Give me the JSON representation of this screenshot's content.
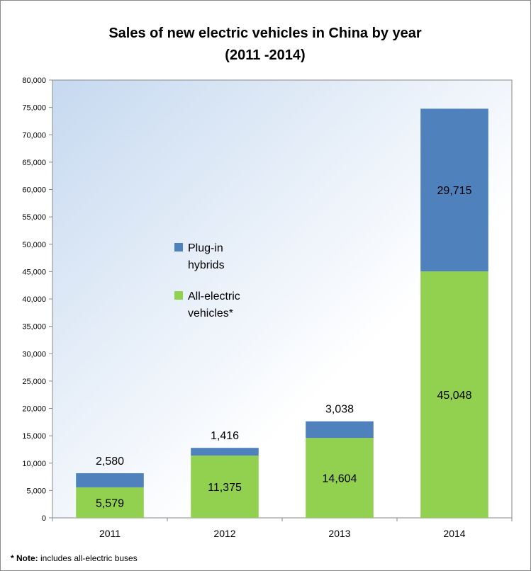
{
  "title": {
    "line1": "Sales of new electric vehicles in China by year",
    "line2": "(2011 -2014)"
  },
  "note": {
    "prefix": "* Note:",
    "text": " includes all-electric buses"
  },
  "colors": {
    "plug_in": "#4f81bd",
    "all_electric": "#92d050",
    "gradient_start": "#c6d9f0",
    "gradient_end": "#ffffff"
  },
  "chart_data": {
    "type": "bar",
    "stacked": true,
    "categories": [
      "2011",
      "2012",
      "2013",
      "2014"
    ],
    "series": [
      {
        "name": "All-electric vehicles*",
        "values": [
          5579,
          11375,
          14604,
          45048
        ],
        "labels": [
          "5,579",
          "11,375",
          "14,604",
          "45,048"
        ],
        "color": "#92d050"
      },
      {
        "name": "Plug-in hybrids",
        "values": [
          2580,
          1416,
          3038,
          29715
        ],
        "labels": [
          "2,580",
          "1,416",
          "3,038",
          "29,715"
        ],
        "color": "#4f81bd"
      }
    ],
    "ylim": [
      0,
      80000
    ],
    "yticks": [
      "0",
      "5,000",
      "10,000",
      "15,000",
      "20,000",
      "25,000",
      "30,000",
      "35,000",
      "40,000",
      "45,000",
      "50,000",
      "55,000",
      "60,000",
      "65,000",
      "70,000",
      "75,000",
      "80,000"
    ],
    "legend": [
      {
        "lines": [
          "Plug-in",
          "hybrids"
        ],
        "color": "#4f81bd"
      },
      {
        "lines": [
          "All-electric",
          "vehicles*"
        ],
        "color": "#92d050"
      }
    ],
    "legend_position": "inside-left",
    "grid": false
  }
}
